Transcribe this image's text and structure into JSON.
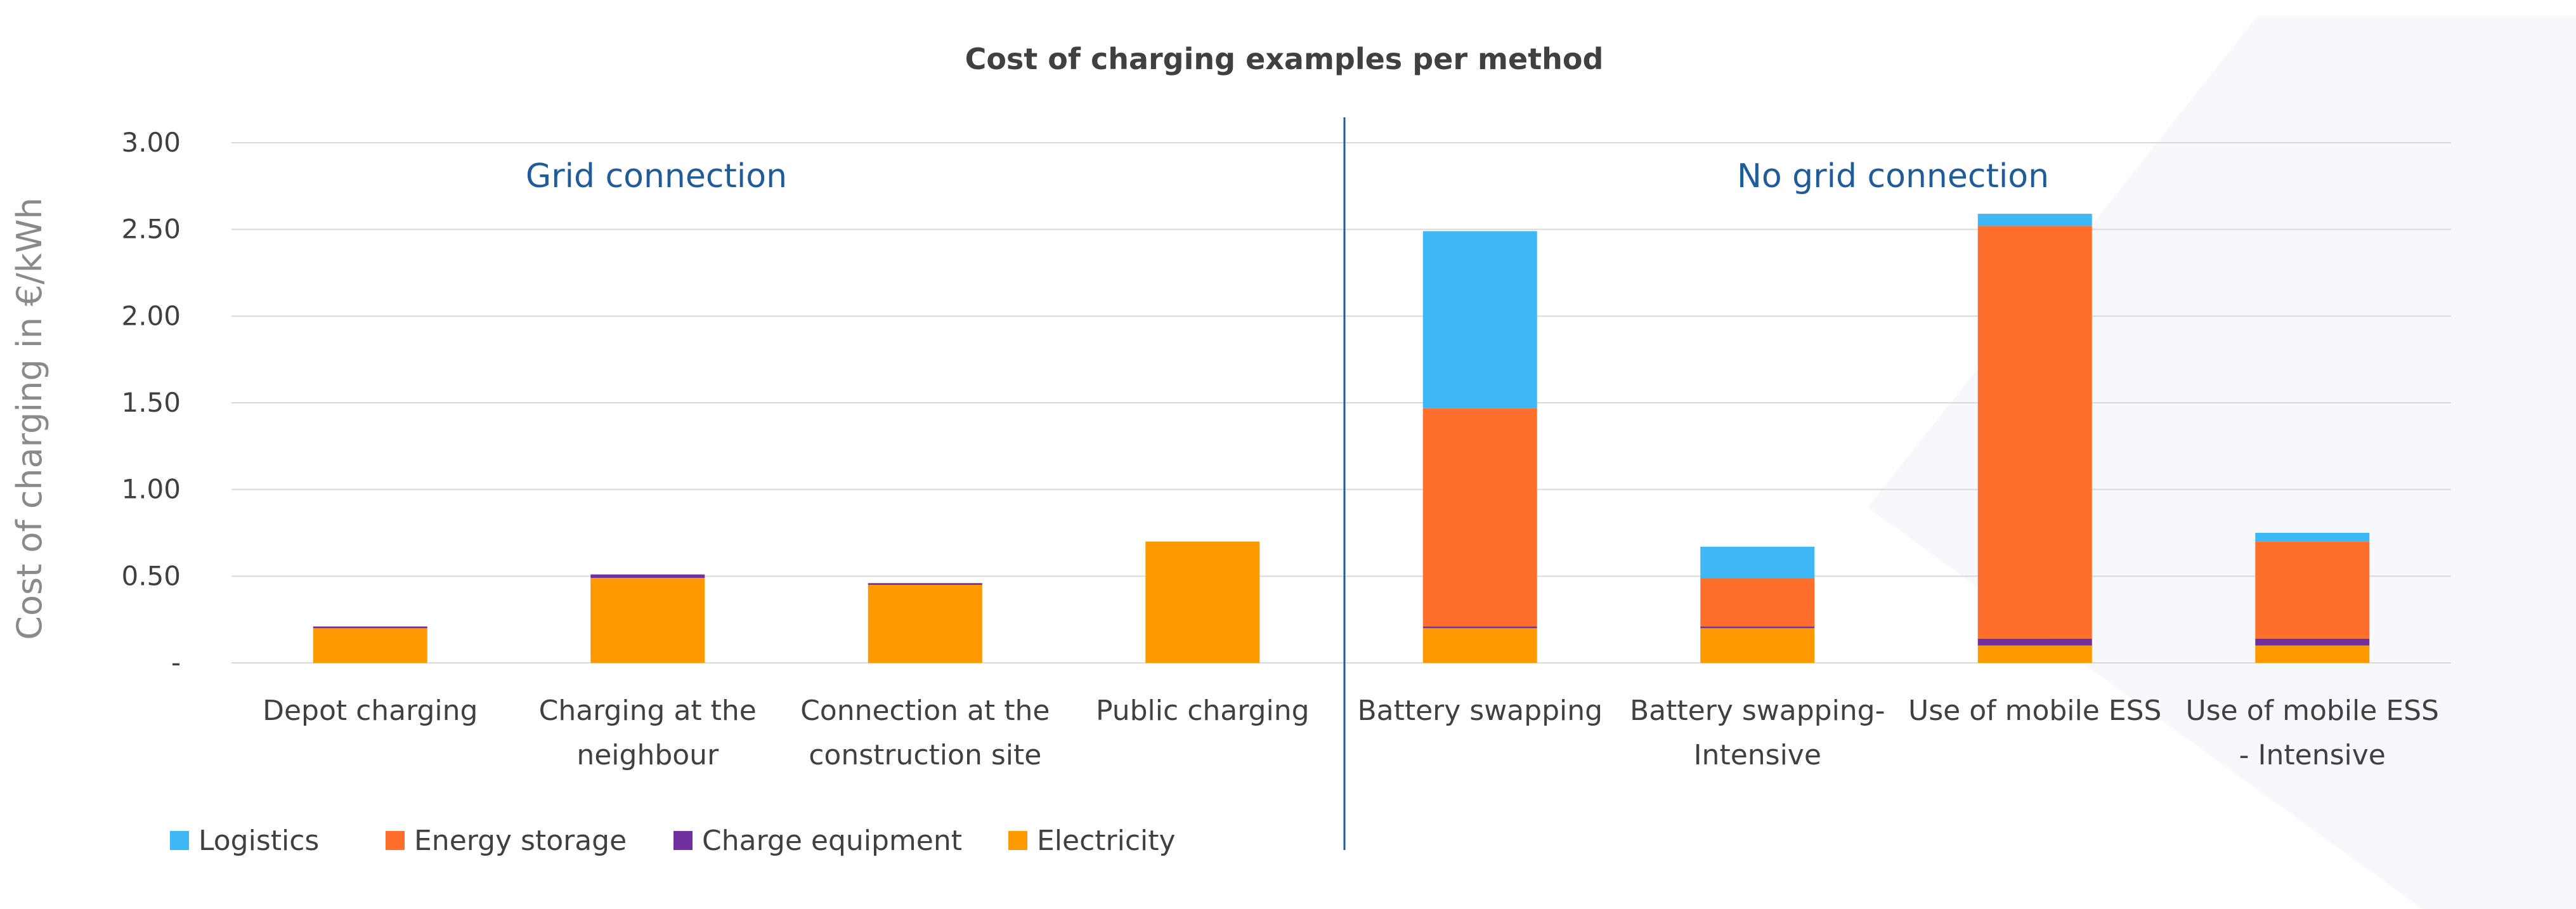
{
  "chart_data": {
    "type": "bar",
    "stacked": true,
    "title": "Cost of charging examples per method",
    "xlabel": "",
    "ylabel": "Cost of charging in €/kWh",
    "ylim": [
      0,
      3
    ],
    "yticks": [
      {
        "value": 0,
        "label": "-"
      },
      {
        "value": 0.5,
        "label": "0.50"
      },
      {
        "value": 1.0,
        "label": "1.00"
      },
      {
        "value": 1.5,
        "label": "1.50"
      },
      {
        "value": 2.0,
        "label": "2.00"
      },
      {
        "value": 2.5,
        "label": "2.50"
      },
      {
        "value": 3.0,
        "label": "3.00"
      }
    ],
    "grid": true,
    "legend_position": "bottom-left",
    "categories": [
      [
        "Depot charging"
      ],
      [
        "Charging at the",
        "neighbour"
      ],
      [
        "Connection at the",
        "construction site"
      ],
      [
        "Public charging"
      ],
      [
        "Battery swapping"
      ],
      [
        "Battery swapping-",
        "Intensive"
      ],
      [
        "Use of mobile ESS"
      ],
      [
        "Use of mobile ESS",
        "- Intensive"
      ]
    ],
    "series": [
      {
        "name": "Electricity",
        "color": "#FF9900",
        "values": [
          0.2,
          0.49,
          0.45,
          0.7,
          0.2,
          0.2,
          0.1,
          0.1
        ]
      },
      {
        "name": "Charge equipment",
        "color": "#7030A0",
        "values": [
          0.01,
          0.02,
          0.01,
          0.0,
          0.01,
          0.01,
          0.04,
          0.04
        ]
      },
      {
        "name": "Energy storage",
        "color": "#FF6F2C",
        "values": [
          0,
          0,
          0,
          0,
          1.26,
          0.28,
          2.38,
          0.56
        ]
      },
      {
        "name": "Logistics",
        "color": "#3DB8F5",
        "values": [
          0,
          0,
          0,
          0,
          1.02,
          0.18,
          0.07,
          0.05
        ]
      }
    ],
    "legend_order": [
      "Logistics",
      "Energy storage",
      "Charge equipment",
      "Electricity"
    ],
    "annotations": [
      {
        "text": "Grid connection",
        "group": "left"
      },
      {
        "text": "No grid connection",
        "group": "right"
      }
    ]
  }
}
